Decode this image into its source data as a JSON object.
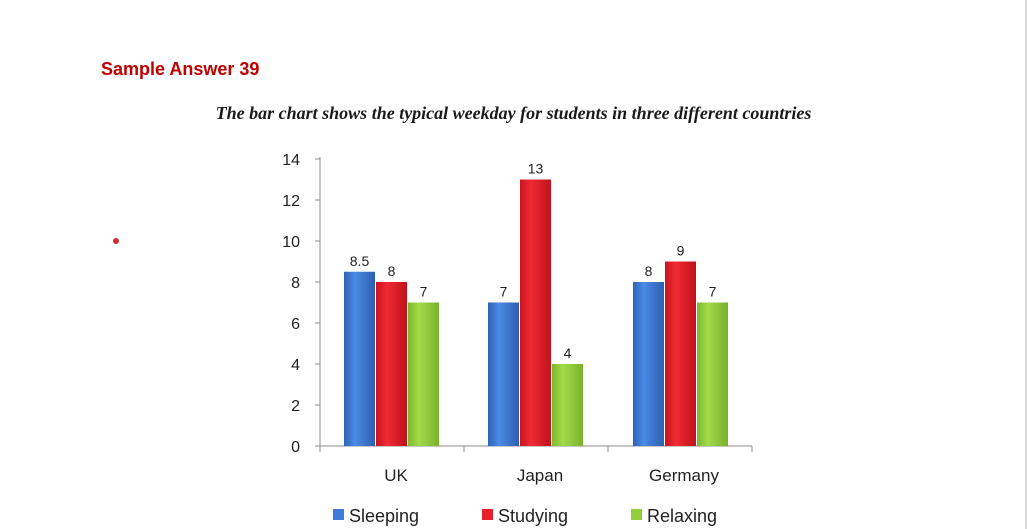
{
  "heading": "Sample Answer 39",
  "chart_data": {
    "type": "bar",
    "title": "The bar chart shows the typical weekday for students in three different countries",
    "categories": [
      "UK",
      "Japan",
      "Germany"
    ],
    "series": [
      {
        "name": "Sleeping",
        "color": "#3d7bd6",
        "values": [
          8.5,
          7,
          8
        ]
      },
      {
        "name": "Studying",
        "color": "#e8202b",
        "values": [
          8,
          13,
          9
        ]
      },
      {
        "name": "Relaxing",
        "color": "#93cf3c",
        "values": [
          7,
          4,
          7
        ]
      }
    ],
    "ylim": [
      0,
      14
    ],
    "yticks": [
      0,
      2,
      4,
      6,
      8,
      10,
      12,
      14
    ],
    "grid": false,
    "legend": "bottom",
    "data_labels": true
  }
}
